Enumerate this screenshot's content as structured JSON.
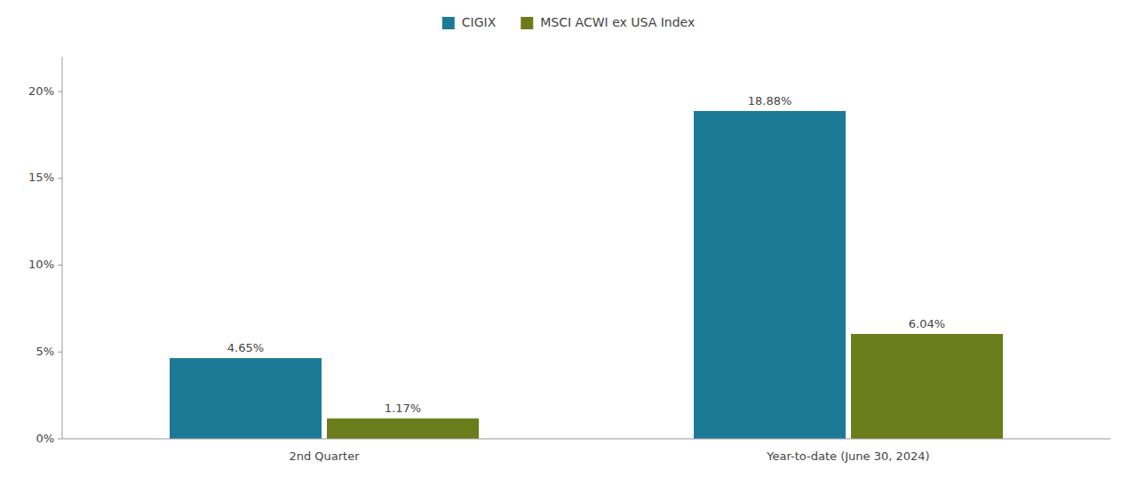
{
  "chart_data": {
    "type": "bar",
    "categories": [
      "2nd Quarter",
      "Year-to-date (June 30, 2024)"
    ],
    "series": [
      {
        "name": "CIGIX",
        "color": "#1d7a96",
        "values": [
          4.65,
          18.88
        ],
        "value_labels": [
          "4.65%",
          "18.88%"
        ]
      },
      {
        "name": "MSCI ACWI ex USA Index",
        "color": "#6b7c1a",
        "values": [
          1.17,
          6.04
        ],
        "value_labels": [
          "1.17%",
          "6.04%"
        ]
      }
    ],
    "ylim": [
      0,
      22
    ],
    "yticks": [
      {
        "value": 0,
        "label": "0%"
      },
      {
        "value": 5,
        "label": "5%"
      },
      {
        "value": 10,
        "label": "10%"
      },
      {
        "value": 15,
        "label": "15%"
      },
      {
        "value": 20,
        "label": "20%"
      }
    ],
    "grid": false,
    "legend": "top",
    "data_labels": true
  }
}
